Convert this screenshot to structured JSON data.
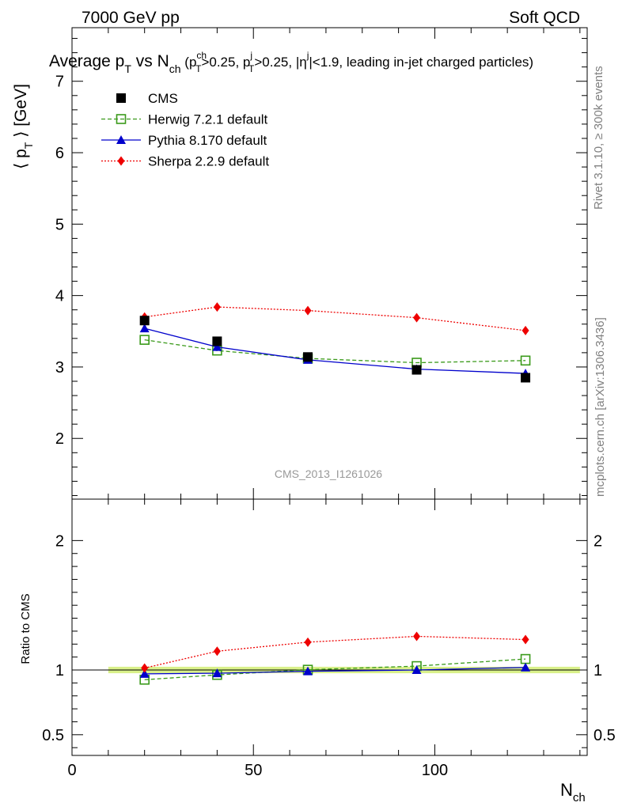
{
  "header": {
    "left": "7000 GeV pp",
    "right": "Soft QCD"
  },
  "chart_data": [
    {
      "type": "line",
      "title": {
        "main": "Average p",
        "main_sub": "T",
        "vs": " vs N",
        "vs_sub": "ch",
        "open": " (p",
        "c1_sup": "ch",
        "c1_sub": "T",
        "c1_rest": ">0.25, p",
        "c2_sup": "j",
        "c2_sub": "T",
        "c2_rest": ">0.25, |η",
        "c3_sup": "j",
        "c3_rest": "|<1.9, leading in-jet charged particles)"
      },
      "ylabel": {
        "pre": "⟨ p",
        "sub": "T",
        "post": " ⟩ [GeV]"
      },
      "xlabel": {
        "main": "N",
        "sub": "ch"
      },
      "xlim": [
        0,
        142
      ],
      "ylim": [
        1.15,
        7.75
      ],
      "yticks": [
        2,
        3,
        4,
        5,
        6,
        7
      ],
      "x": [
        20,
        40,
        65,
        95,
        125
      ],
      "series": [
        {
          "name": "CMS",
          "values": [
            3.65,
            3.36,
            3.14,
            2.96,
            2.85
          ],
          "color": "#000000",
          "marker": "square",
          "line": "none"
        },
        {
          "name": "Herwig 7.2.1 default",
          "values": [
            3.38,
            3.23,
            3.12,
            3.06,
            3.09
          ],
          "color": "#3a9a1a",
          "marker": "open-square",
          "line": "dashed"
        },
        {
          "name": "Pythia 8.170 default",
          "values": [
            3.54,
            3.28,
            3.1,
            2.97,
            2.91
          ],
          "color": "#0000cc",
          "marker": "triangle",
          "line": "solid"
        },
        {
          "name": "Sherpa 2.2.9 default",
          "values": [
            3.7,
            3.84,
            3.79,
            3.69,
            3.51
          ],
          "color": "#ee0000",
          "marker": "diamond",
          "line": "dotted"
        }
      ],
      "watermark": "CMS_2013_I1261026",
      "side_labels": {
        "rivet": "Rivet 3.1.10, ≥ 300k events",
        "mcplots": "mcplots.cern.ch [arXiv:1306.3436]"
      },
      "legend_position": "top-left"
    },
    {
      "type": "line",
      "ylabel": "Ratio to CMS",
      "xlim": [
        0,
        142
      ],
      "ylim": [
        0.34,
        2.32
      ],
      "yticks": [
        0.5,
        1,
        2
      ],
      "ytick_labels": [
        "0.5",
        "1",
        "2"
      ],
      "xticks": [
        0,
        50,
        100
      ],
      "xtick_labels": [
        "0",
        "50",
        "100"
      ],
      "x": [
        20,
        40,
        65,
        95,
        125
      ],
      "band": {
        "xlim": [
          10,
          140
        ],
        "ylim": [
          0.975,
          1.025
        ],
        "color": "#d9f08a"
      },
      "series": [
        {
          "name": "Herwig 7.2.1 default",
          "values": [
            0.925,
            0.962,
            1.002,
            1.03,
            1.085
          ]
        },
        {
          "name": "Pythia 8.170 default",
          "values": [
            0.97,
            0.975,
            0.99,
            1.0,
            1.02
          ]
        },
        {
          "name": "Sherpa 2.2.9 default",
          "values": [
            1.015,
            1.145,
            1.215,
            1.26,
            1.235
          ]
        }
      ]
    }
  ]
}
